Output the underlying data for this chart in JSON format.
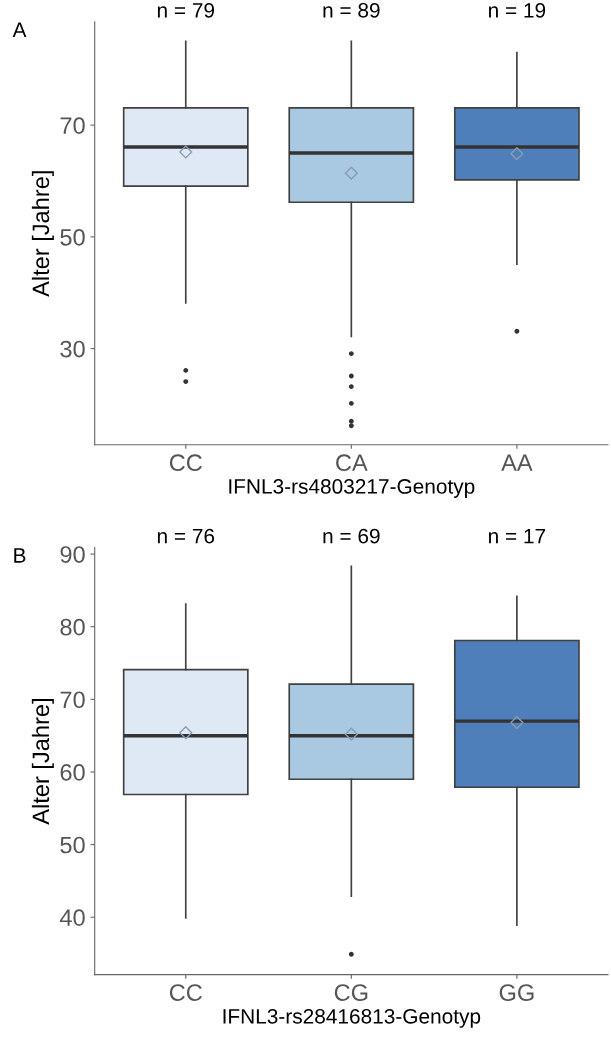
{
  "chart_data": [
    {
      "type": "box",
      "categories": [
        "CC",
        "CA",
        "AA"
      ],
      "xlabel": "IFNL3-rs4803217-Genotyp",
      "ylabel": "Alter [Jahre]",
      "ylim": [
        12.8,
        88.5
      ],
      "yticks": [
        30,
        50,
        70
      ],
      "grid": false,
      "colors": [
        "#dfe9f5",
        "#a9c8e2",
        "#4f7fbb"
      ],
      "annotations": [
        "A",
        "n = 79",
        "n = 89",
        "n = 19"
      ],
      "boxes": [
        {
          "low": 38.2,
          "q1": 59.1,
          "median": 66.1,
          "q3": 73.1,
          "high": 85,
          "mean": 65.2,
          "outliers": [
            26.1,
            24.1
          ]
        },
        {
          "low": 32.2,
          "q1": 56.2,
          "median": 65.0,
          "q3": 73.1,
          "high": 85,
          "mean": 61.4,
          "outliers": [
            29.1,
            25.1,
            23.2,
            20.2,
            17.0,
            16.2
          ]
        },
        {
          "low": 45.1,
          "q1": 60.2,
          "median": 66.1,
          "q3": 73.1,
          "high": 83.0,
          "mean": 64.9,
          "outliers": [
            33.1
          ]
        }
      ]
    },
    {
      "type": "box",
      "categories": [
        "CC",
        "CG",
        "GG"
      ],
      "xlabel": "IFNL3-rs28416813-Genotyp",
      "ylabel": "Alter [Jahre]",
      "ylim": [
        32.1,
        90.9
      ],
      "yticks": [
        40,
        50,
        60,
        70,
        80,
        90
      ],
      "grid": false,
      "colors": [
        "#dfe9f5",
        "#a9c8e2",
        "#4f7fbb"
      ],
      "annotations": [
        "B",
        "n = 76",
        "n = 69",
        "n = 17"
      ],
      "boxes": [
        {
          "low": 39.9,
          "q1": 56.9,
          "median": 65.0,
          "q3": 74.1,
          "high": 83.1,
          "mean": 65.4
        },
        {
          "low": 42.9,
          "q1": 59.0,
          "median": 65.0,
          "q3": 72.1,
          "high": 88.3,
          "mean": 65.2,
          "outliers": [
            34.9
          ]
        },
        {
          "low": 38.9,
          "q1": 57.9,
          "median": 67.0,
          "q3": 78.1,
          "high": 84.2,
          "mean": 66.8
        }
      ]
    }
  ]
}
